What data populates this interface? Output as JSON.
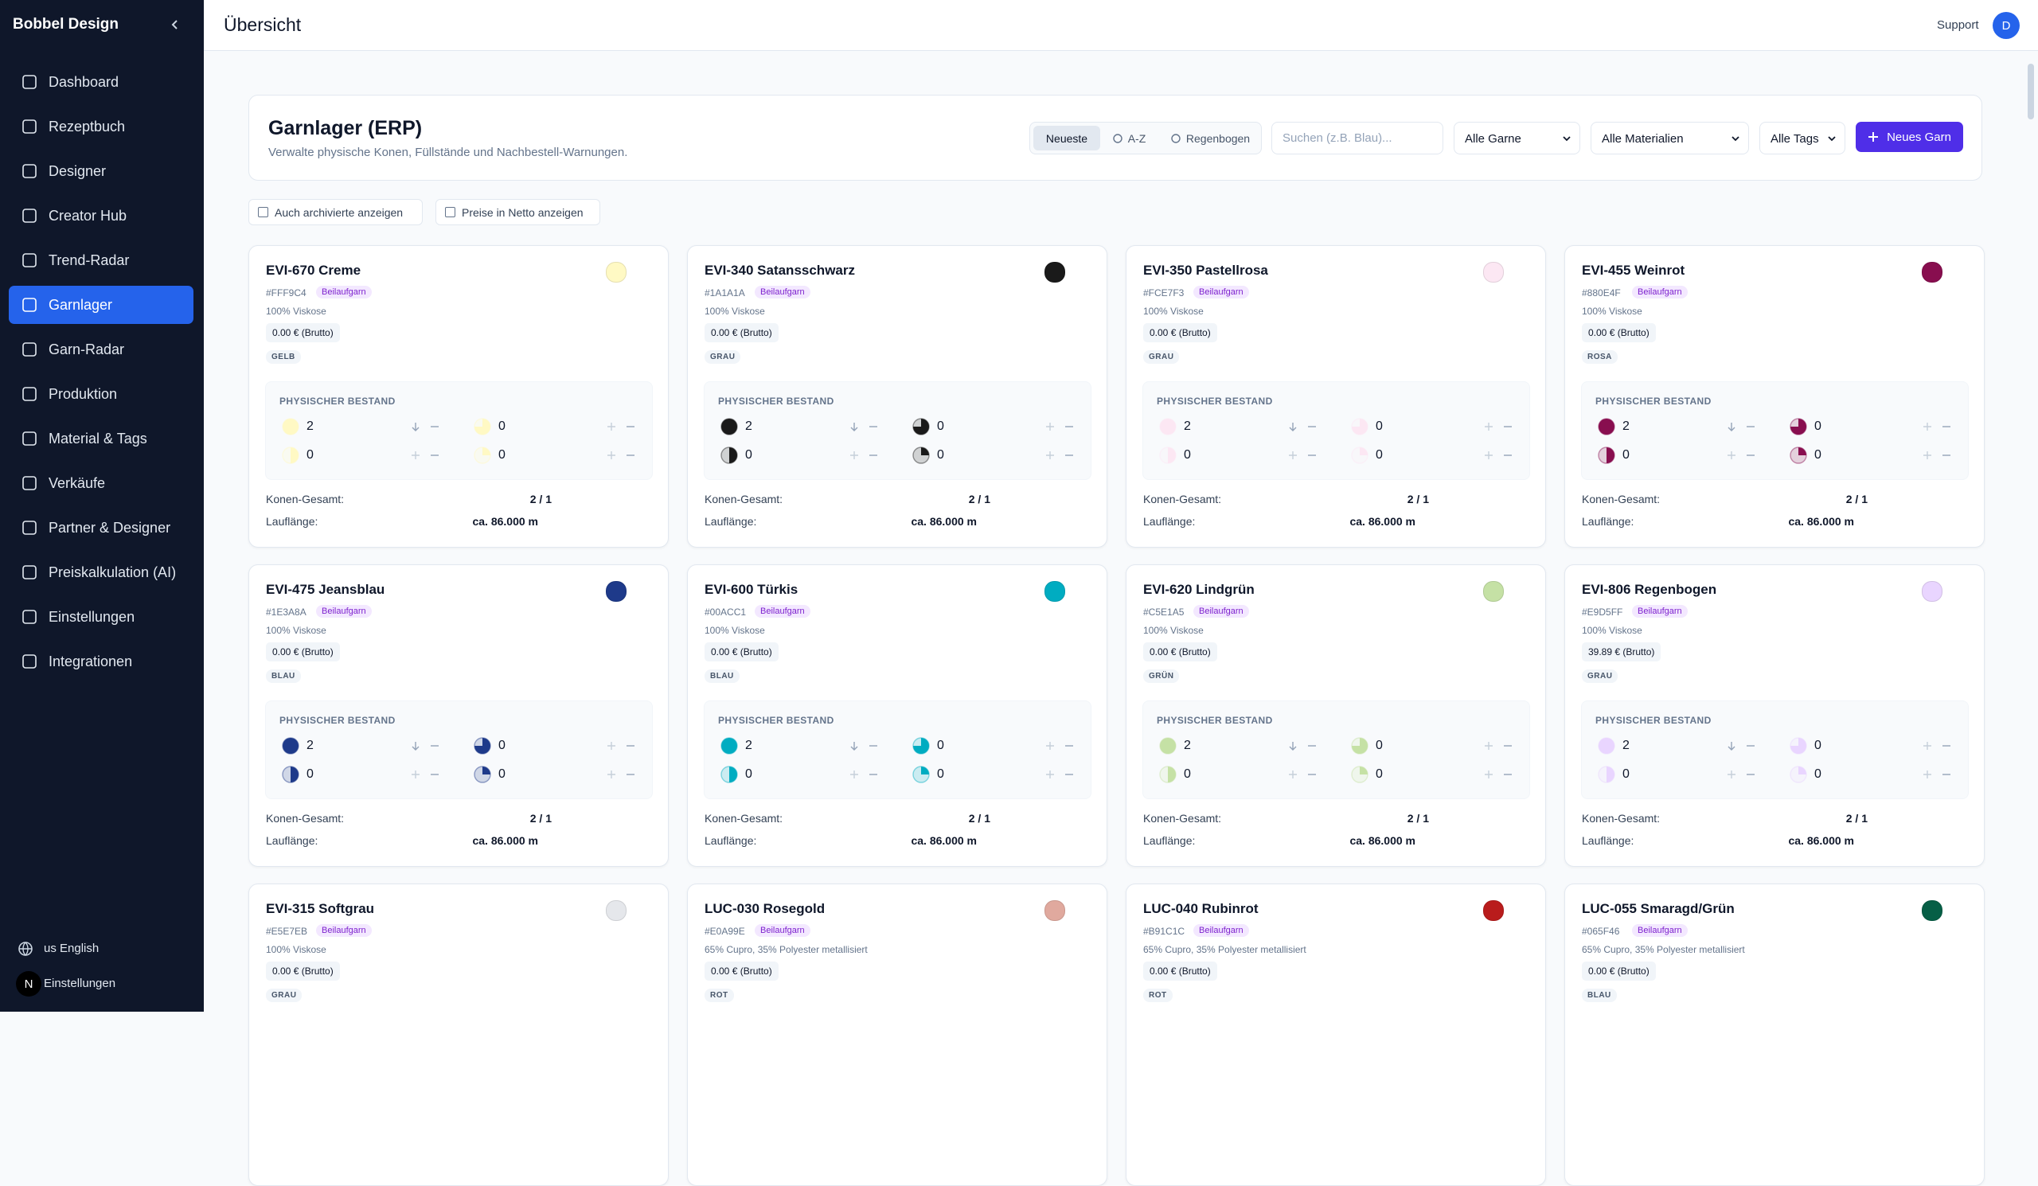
{
  "sidebar": {
    "brand": "Bobbel Design",
    "nav": [
      "Dashboard",
      "Rezeptbuch",
      "Designer",
      "Creator Hub",
      "Trend-Radar",
      "Garnlager",
      "Garn-Radar",
      "Produktion",
      "Material & Tags",
      "Verkäufe",
      "Partner & Designer",
      "Preiskalkulation (AI)",
      "Einstellungen",
      "Integrationen"
    ],
    "active": "Garnlager",
    "language": "us English",
    "avatar": "N",
    "settings_label": "Einstellungen"
  },
  "header": {
    "title": "Übersicht",
    "support": "Support",
    "avatar": "D"
  },
  "toolbar": {
    "title": "Garnlager (ERP)",
    "subtitle": "Verwalte physische Konen, Füllstände und Nachbestell-Warnungen.",
    "sort": [
      "Neueste",
      "A-Z",
      "Regenbogen"
    ],
    "search_placeholder": "Suchen (z.B. Blau)...",
    "filters": [
      "Alle Garne",
      "Alle Materialien",
      "Alle Tags"
    ],
    "new_button": "Neues Garn"
  },
  "options": [
    "Auch archivierte anzeigen",
    "Preise in Netto anzeigen"
  ],
  "labels": {
    "stock": "PHYSISCHER BESTAND",
    "cones_total": "Konen-Gesamt:",
    "run_length": "Lauflänge:"
  },
  "yarns": [
    {
      "name": "EVI-670 Creme",
      "hex": "#FFF9C4",
      "tag": "Beilaufgarn",
      "material": "100% Viskose",
      "price": "0.00 € (Brutto)",
      "color_tag": "GELB",
      "stock": [
        2,
        0,
        0,
        0
      ],
      "cones": "2 / 1",
      "length": "ca. 86.000 m"
    },
    {
      "name": "EVI-340 Satansschwarz",
      "hex": "#1A1A1A",
      "tag": "Beilaufgarn",
      "material": "100% Viskose",
      "price": "0.00 € (Brutto)",
      "color_tag": "GRAU",
      "stock": [
        2,
        0,
        0,
        0
      ],
      "cones": "2 / 1",
      "length": "ca. 86.000 m"
    },
    {
      "name": "EVI-350 Pastellrosa",
      "hex": "#FCE7F3",
      "tag": "Beilaufgarn",
      "material": "100% Viskose",
      "price": "0.00 € (Brutto)",
      "color_tag": "GRAU",
      "stock": [
        2,
        0,
        0,
        0
      ],
      "cones": "2 / 1",
      "length": "ca. 86.000 m"
    },
    {
      "name": "EVI-455 Weinrot",
      "hex": "#880E4F",
      "tag": "Beilaufgarn",
      "material": "100% Viskose",
      "price": "0.00 € (Brutto)",
      "color_tag": "ROSA",
      "stock": [
        2,
        0,
        0,
        0
      ],
      "cones": "2 / 1",
      "length": "ca. 86.000 m"
    },
    {
      "name": "EVI-475 Jeansblau",
      "hex": "#1E3A8A",
      "tag": "Beilaufgarn",
      "material": "100% Viskose",
      "price": "0.00 € (Brutto)",
      "color_tag": "BLAU",
      "stock": [
        2,
        0,
        0,
        0
      ],
      "cones": "2 / 1",
      "length": "ca. 86.000 m"
    },
    {
      "name": "EVI-600 Türkis",
      "hex": "#00ACC1",
      "tag": "Beilaufgarn",
      "material": "100% Viskose",
      "price": "0.00 € (Brutto)",
      "color_tag": "BLAU",
      "stock": [
        2,
        0,
        0,
        0
      ],
      "cones": "2 / 1",
      "length": "ca. 86.000 m"
    },
    {
      "name": "EVI-620 Lindgrün",
      "hex": "#C5E1A5",
      "tag": "Beilaufgarn",
      "material": "100% Viskose",
      "price": "0.00 € (Brutto)",
      "color_tag": "GRÜN",
      "stock": [
        2,
        0,
        0,
        0
      ],
      "cones": "2 / 1",
      "length": "ca. 86.000 m"
    },
    {
      "name": "EVI-806 Regenbogen",
      "hex": "#E9D5FF",
      "tag": "Beilaufgarn",
      "material": "100% Viskose",
      "price": "39.89 € (Brutto)",
      "color_tag": "GRAU",
      "stock": [
        2,
        0,
        0,
        0
      ],
      "cones": "2 / 1",
      "length": "ca. 86.000 m"
    },
    {
      "name": "EVI-315 Softgrau",
      "hex": "#E5E7EB",
      "tag": "Beilaufgarn",
      "material": "100% Viskose",
      "price": "0.00 € (Brutto)",
      "color_tag": "GRAU"
    },
    {
      "name": "LUC-030 Rosegold",
      "hex": "#E0A99E",
      "tag": "Beilaufgarn",
      "material": "65% Cupro, 35% Polyester metallisiert",
      "price": "0.00 € (Brutto)",
      "color_tag": "ROT"
    },
    {
      "name": "LUC-040 Rubinrot",
      "hex": "#B91C1C",
      "tag": "Beilaufgarn",
      "material": "65% Cupro, 35% Polyester metallisiert",
      "price": "0.00 € (Brutto)",
      "color_tag": "ROT"
    },
    {
      "name": "LUC-055 Smaragd/Grün",
      "hex": "#065F46",
      "tag": "Beilaufgarn",
      "material": "65% Cupro, 35% Polyester metallisiert",
      "price": "0.00 € (Brutto)",
      "color_tag": "BLAU"
    }
  ]
}
